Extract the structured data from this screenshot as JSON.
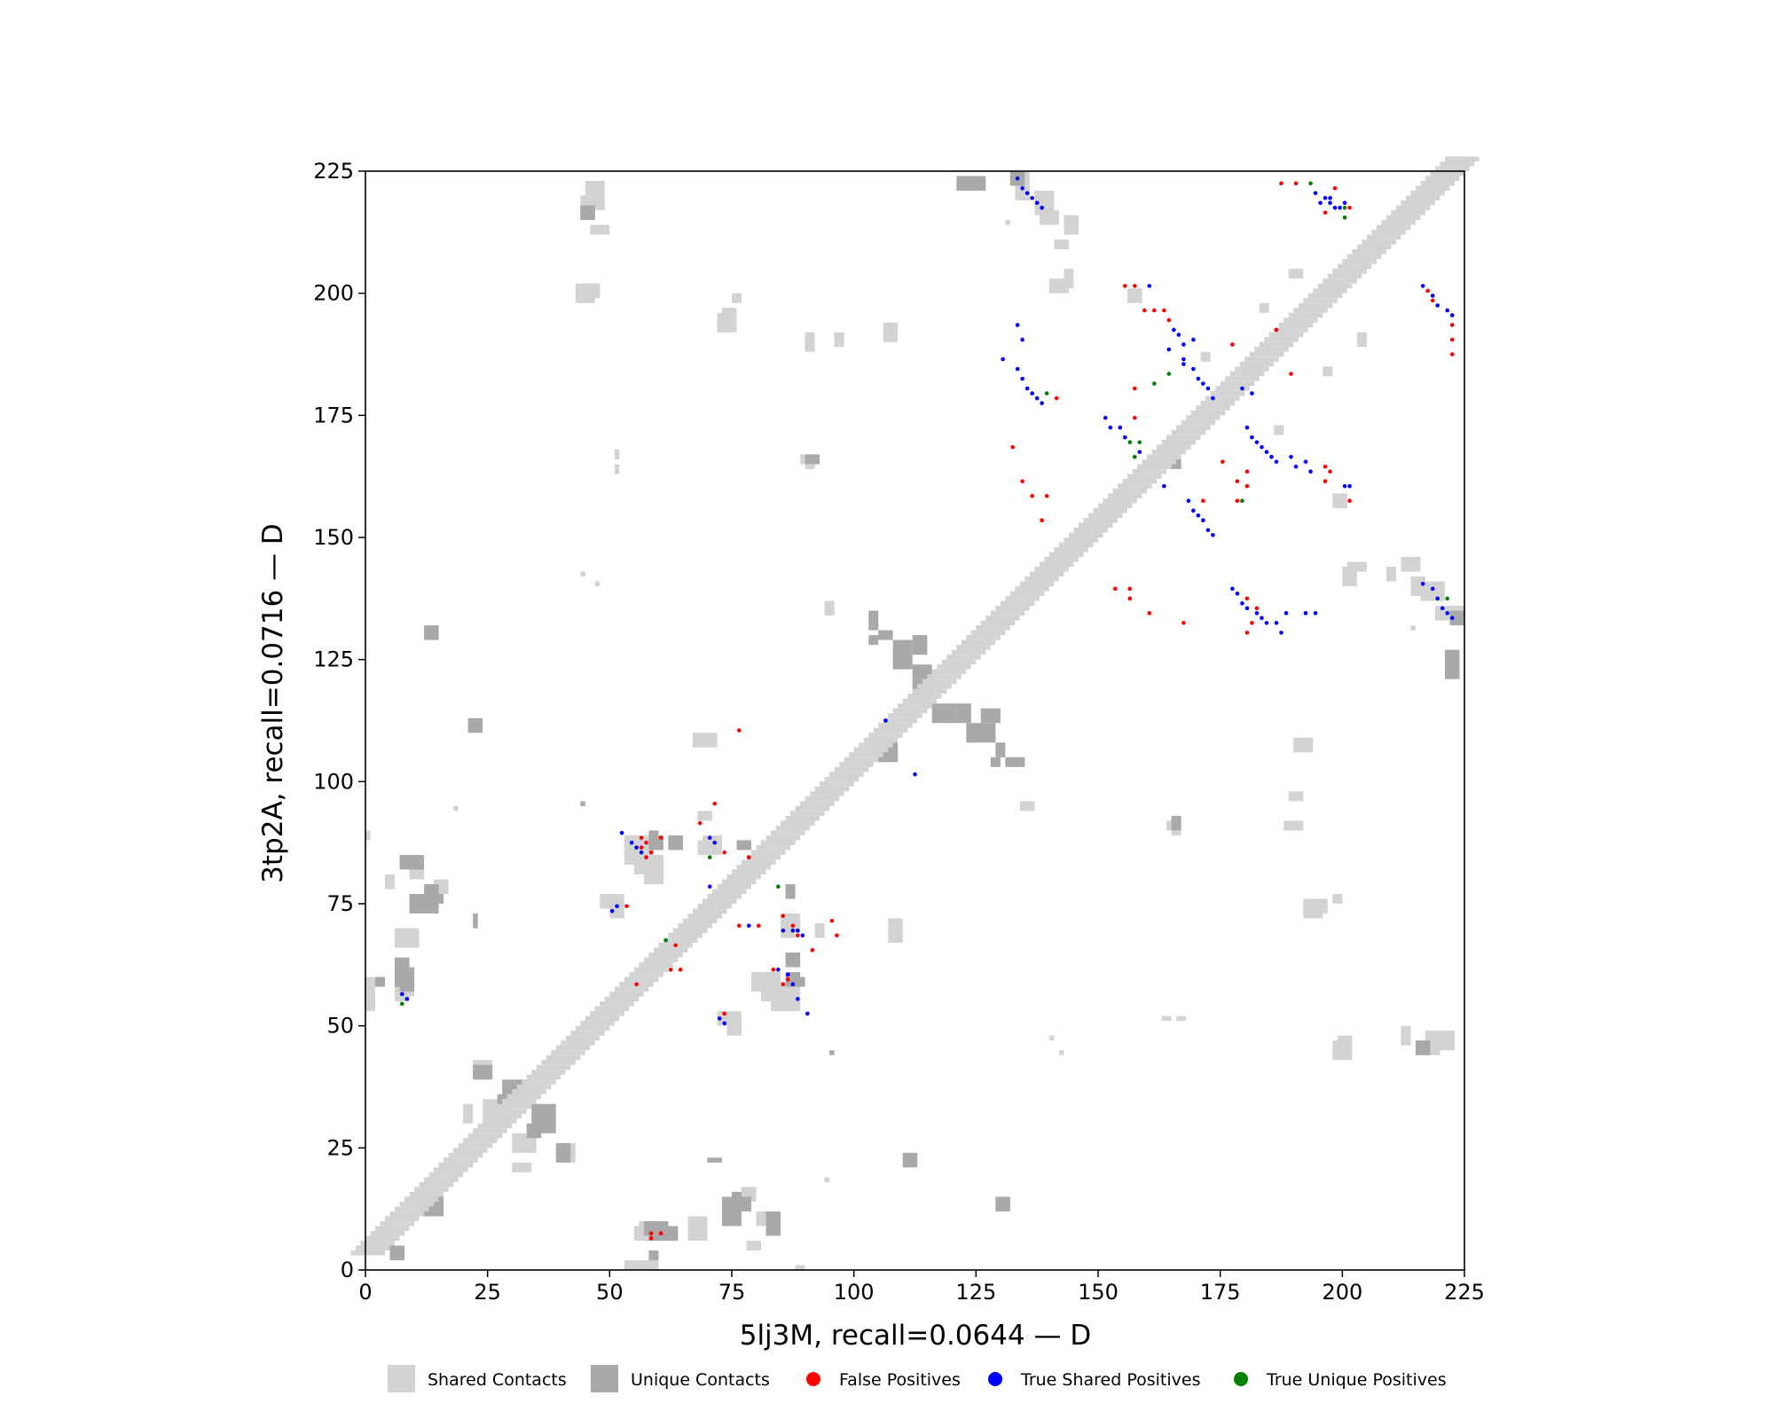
{
  "chart_data": {
    "type": "scatter",
    "title": "",
    "xlabel": "5lj3M, recall=0.0644 — D",
    "ylabel": "3tp2A, recall=0.0716 — D",
    "xlim": [
      0,
      225
    ],
    "ylim": [
      0,
      225
    ],
    "xticks": [
      "0",
      "25",
      "50",
      "75",
      "100",
      "125",
      "150",
      "175",
      "200",
      "225"
    ],
    "yticks": [
      "0",
      "25",
      "50",
      "75",
      "100",
      "125",
      "150",
      "175",
      "200",
      "225"
    ],
    "grid": false,
    "legend_position": "bottom",
    "colors": {
      "shared": "#d3d3d3",
      "unique": "#a9a9a9",
      "false_positive": "#ff0000",
      "true_shared": "#0000ff",
      "true_unique": "#008000"
    },
    "legend": [
      {
        "label": "Shared Contacts",
        "marker": "square",
        "color": "#d3d3d3"
      },
      {
        "label": "Unique Contacts",
        "marker": "square",
        "color": "#a9a9a9"
      },
      {
        "label": "False Positives",
        "marker": "circle",
        "color": "#ff0000"
      },
      {
        "label": "True Shared Positives",
        "marker": "circle",
        "color": "#0000ff"
      },
      {
        "label": "True Unique Positives",
        "marker": "circle",
        "color": "#008000"
      }
    ],
    "shared_patches": [
      [
        45,
        217,
        4,
        6
      ],
      [
        46,
        212,
        4,
        2
      ],
      [
        44,
        199,
        4,
        3
      ],
      [
        73,
        192,
        3,
        5
      ],
      [
        90,
        164,
        2,
        2
      ],
      [
        51,
        163,
        1,
        2
      ],
      [
        133,
        219,
        3,
        6
      ],
      [
        138,
        214,
        4,
        3
      ],
      [
        141,
        209,
        3,
        2
      ],
      [
        140,
        200,
        4,
        3
      ],
      [
        156,
        198,
        3,
        3
      ],
      [
        183,
        196,
        2,
        2
      ],
      [
        171,
        186,
        2,
        2
      ],
      [
        189,
        203,
        3,
        2
      ],
      [
        201,
        143,
        4,
        2
      ],
      [
        212,
        143,
        4,
        3
      ],
      [
        216,
        137,
        5,
        4
      ],
      [
        190,
        106,
        4,
        3
      ],
      [
        189,
        96,
        3,
        2
      ],
      [
        188,
        90,
        4,
        2
      ],
      [
        165,
        89,
        2,
        2
      ],
      [
        192,
        72,
        4,
        4
      ],
      [
        198,
        75,
        2,
        2
      ],
      [
        198,
        43,
        4,
        4
      ],
      [
        215,
        44,
        5,
        3
      ],
      [
        166,
        51,
        2,
        1
      ],
      [
        134,
        94,
        3,
        2
      ],
      [
        142,
        44,
        1,
        1
      ],
      [
        50,
        72,
        3,
        5
      ],
      [
        53,
        83,
        6,
        6
      ],
      [
        57,
        79,
        4,
        2
      ],
      [
        67,
        107,
        5,
        3
      ],
      [
        69,
        86,
        4,
        3
      ],
      [
        85,
        68,
        3,
        5
      ],
      [
        92,
        68,
        2,
        3
      ],
      [
        81,
        55,
        4,
        6
      ],
      [
        74,
        48,
        3,
        4
      ],
      [
        56,
        6,
        3,
        4
      ],
      [
        57,
        0,
        3,
        2
      ],
      [
        66,
        6,
        4,
        5
      ],
      [
        78,
        4,
        3,
        2
      ],
      [
        88,
        0,
        2,
        1
      ],
      [
        14,
        77,
        3,
        3
      ],
      [
        9,
        80,
        3,
        3
      ],
      [
        6,
        55,
        3,
        5
      ],
      [
        0,
        53,
        2,
        5
      ],
      [
        20,
        30,
        2,
        4
      ],
      [
        30,
        24,
        5,
        4
      ],
      [
        40,
        22,
        3,
        4
      ],
      [
        18,
        94,
        1,
        1
      ],
      [
        131,
        214,
        1,
        1
      ],
      [
        158,
        198,
        1,
        1
      ],
      [
        47,
        140,
        1,
        1
      ]
    ],
    "unique_patches": [
      [
        132,
        222,
        3,
        3
      ],
      [
        21,
        110,
        3,
        3
      ],
      [
        105,
        129,
        3,
        2
      ],
      [
        112,
        121,
        4,
        3
      ],
      [
        113,
        126,
        2,
        2
      ],
      [
        105,
        104,
        4,
        4
      ],
      [
        116,
        112,
        5,
        4
      ],
      [
        123,
        108,
        6,
        4
      ],
      [
        126,
        112,
        4,
        3
      ],
      [
        131,
        103,
        4,
        2
      ],
      [
        62,
        86,
        3,
        3
      ],
      [
        76,
        86,
        3,
        2
      ],
      [
        7,
        82,
        5,
        3
      ],
      [
        6,
        58,
        4,
        4
      ],
      [
        2,
        58,
        2,
        2
      ],
      [
        22,
        70,
        1,
        3
      ],
      [
        34,
        28,
        5,
        6
      ],
      [
        39,
        22,
        3,
        4
      ],
      [
        27,
        33,
        3,
        3
      ],
      [
        12,
        11,
        4,
        4
      ],
      [
        5,
        2,
        3,
        3
      ],
      [
        60,
        6,
        4,
        3
      ],
      [
        73,
        9,
        4,
        6
      ],
      [
        76,
        12,
        3,
        3
      ],
      [
        90,
        165,
        3,
        2
      ],
      [
        103,
        128,
        2,
        2
      ],
      [
        129,
        12,
        3,
        3
      ],
      [
        165,
        164,
        2,
        2
      ],
      [
        221,
        121,
        3,
        6
      ],
      [
        215,
        44,
        3,
        3
      ],
      [
        57,
        7,
        3,
        3
      ],
      [
        75,
        13,
        2,
        3
      ],
      [
        86,
        58,
        3,
        3
      ],
      [
        88,
        58,
        2,
        2
      ],
      [
        44,
        95,
        1,
        1
      ]
    ],
    "false_positives": [
      [
        187,
        222
      ],
      [
        190,
        222
      ],
      [
        196,
        216
      ],
      [
        198,
        221
      ],
      [
        201,
        217
      ],
      [
        217,
        200
      ],
      [
        218,
        198
      ],
      [
        222,
        193
      ],
      [
        222,
        187
      ],
      [
        222,
        190
      ],
      [
        155,
        201
      ],
      [
        157,
        201
      ],
      [
        159,
        196
      ],
      [
        161,
        196
      ],
      [
        163,
        196
      ],
      [
        164,
        194
      ],
      [
        186,
        192
      ],
      [
        189,
        183
      ],
      [
        177,
        189
      ],
      [
        141,
        178
      ],
      [
        154,
        172
      ],
      [
        157,
        174
      ],
      [
        157,
        180
      ],
      [
        155,
        170
      ],
      [
        157,
        166
      ],
      [
        132,
        168
      ],
      [
        134,
        161
      ],
      [
        136,
        158
      ],
      [
        138,
        153
      ],
      [
        139,
        158
      ],
      [
        171,
        157
      ],
      [
        178,
        157
      ],
      [
        175,
        165
      ],
      [
        178,
        161
      ],
      [
        180,
        163
      ],
      [
        180,
        160
      ],
      [
        196,
        164
      ],
      [
        197,
        163
      ],
      [
        196,
        161
      ],
      [
        201,
        157
      ],
      [
        153,
        139
      ],
      [
        156,
        139
      ],
      [
        156,
        137
      ],
      [
        160,
        134
      ],
      [
        167,
        132
      ],
      [
        180,
        137
      ],
      [
        182,
        135
      ],
      [
        181,
        132
      ],
      [
        180,
        130
      ],
      [
        71,
        95
      ],
      [
        68,
        91
      ],
      [
        60,
        88
      ],
      [
        73,
        85
      ],
      [
        78,
        84
      ],
      [
        56,
        88
      ],
      [
        56,
        86
      ],
      [
        57,
        87
      ],
      [
        58,
        85
      ],
      [
        57,
        84
      ],
      [
        62,
        61
      ],
      [
        64,
        61
      ],
      [
        76,
        70
      ],
      [
        80,
        70
      ],
      [
        85,
        72
      ],
      [
        87,
        70
      ],
      [
        88,
        68
      ],
      [
        95,
        71
      ],
      [
        91,
        65
      ],
      [
        96,
        68
      ],
      [
        73,
        52
      ],
      [
        86,
        60
      ],
      [
        85,
        58
      ],
      [
        86,
        59
      ],
      [
        83,
        61
      ],
      [
        55,
        58
      ],
      [
        60,
        7
      ],
      [
        58,
        7
      ],
      [
        53,
        74
      ],
      [
        58,
        6
      ],
      [
        76,
        110
      ],
      [
        63,
        66
      ]
    ],
    "true_shared_positives": [
      [
        133,
        223
      ],
      [
        134,
        221
      ],
      [
        135,
        220
      ],
      [
        136,
        219
      ],
      [
        137,
        218
      ],
      [
        138,
        217
      ],
      [
        194,
        220
      ],
      [
        195,
        218
      ],
      [
        196,
        219
      ],
      [
        197,
        219
      ],
      [
        197,
        218
      ],
      [
        198,
        217
      ],
      [
        199,
        217
      ],
      [
        200,
        218
      ],
      [
        160,
        201
      ],
      [
        165,
        192
      ],
      [
        166,
        191
      ],
      [
        167,
        189
      ],
      [
        169,
        190
      ],
      [
        164,
        188
      ],
      [
        167,
        186
      ],
      [
        167,
        185
      ],
      [
        169,
        184
      ],
      [
        170,
        182
      ],
      [
        171,
        181
      ],
      [
        172,
        180
      ],
      [
        173,
        178
      ],
      [
        133,
        193
      ],
      [
        134,
        190
      ],
      [
        130,
        186
      ],
      [
        133,
        184
      ],
      [
        134,
        182
      ],
      [
        135,
        180
      ],
      [
        136,
        179
      ],
      [
        137,
        178
      ],
      [
        138,
        177
      ],
      [
        151,
        174
      ],
      [
        152,
        172
      ],
      [
        154,
        172
      ],
      [
        155,
        170
      ],
      [
        158,
        167
      ],
      [
        163,
        160
      ],
      [
        168,
        157
      ],
      [
        169,
        155
      ],
      [
        170,
        154
      ],
      [
        171,
        153
      ],
      [
        172,
        151
      ],
      [
        173,
        150
      ],
      [
        180,
        172
      ],
      [
        181,
        170
      ],
      [
        182,
        169
      ],
      [
        183,
        168
      ],
      [
        184,
        167
      ],
      [
        185,
        166
      ],
      [
        186,
        165
      ],
      [
        189,
        166
      ],
      [
        190,
        164
      ],
      [
        192,
        165
      ],
      [
        193,
        163
      ],
      [
        200,
        160
      ],
      [
        201,
        160
      ],
      [
        179,
        180
      ],
      [
        181,
        179
      ],
      [
        177,
        139
      ],
      [
        178,
        138
      ],
      [
        179,
        136
      ],
      [
        180,
        135
      ],
      [
        182,
        134
      ],
      [
        183,
        133
      ],
      [
        184,
        132
      ],
      [
        186,
        132
      ],
      [
        187,
        130
      ],
      [
        188,
        134
      ],
      [
        192,
        134
      ],
      [
        194,
        134
      ],
      [
        216,
        201
      ],
      [
        218,
        199
      ],
      [
        219,
        197
      ],
      [
        221,
        196
      ],
      [
        222,
        195
      ],
      [
        216,
        140
      ],
      [
        218,
        139
      ],
      [
        219,
        137
      ],
      [
        220,
        135
      ],
      [
        221,
        134
      ],
      [
        222,
        133
      ],
      [
        52,
        89
      ],
      [
        54,
        87
      ],
      [
        55,
        86
      ],
      [
        56,
        85
      ],
      [
        70,
        88
      ],
      [
        71,
        87
      ],
      [
        70,
        78
      ],
      [
        78,
        70
      ],
      [
        85,
        69
      ],
      [
        87,
        69
      ],
      [
        88,
        69
      ],
      [
        89,
        68
      ],
      [
        84,
        61
      ],
      [
        86,
        60
      ],
      [
        87,
        58
      ],
      [
        88,
        55
      ],
      [
        90,
        52
      ],
      [
        72,
        51
      ],
      [
        73,
        50
      ],
      [
        50,
        73
      ],
      [
        51,
        74
      ],
      [
        106,
        112
      ],
      [
        112,
        101
      ],
      [
        7,
        56
      ],
      [
        8,
        55
      ]
    ],
    "true_unique_positives": [
      [
        193,
        222
      ],
      [
        200,
        217
      ],
      [
        200,
        215
      ],
      [
        139,
        179
      ],
      [
        156,
        169
      ],
      [
        158,
        169
      ],
      [
        164,
        183
      ],
      [
        161,
        181
      ],
      [
        179,
        157
      ],
      [
        221,
        137
      ],
      [
        70,
        84
      ],
      [
        84,
        78
      ],
      [
        61,
        67
      ],
      [
        7,
        54
      ],
      [
        157,
        166
      ]
    ]
  }
}
